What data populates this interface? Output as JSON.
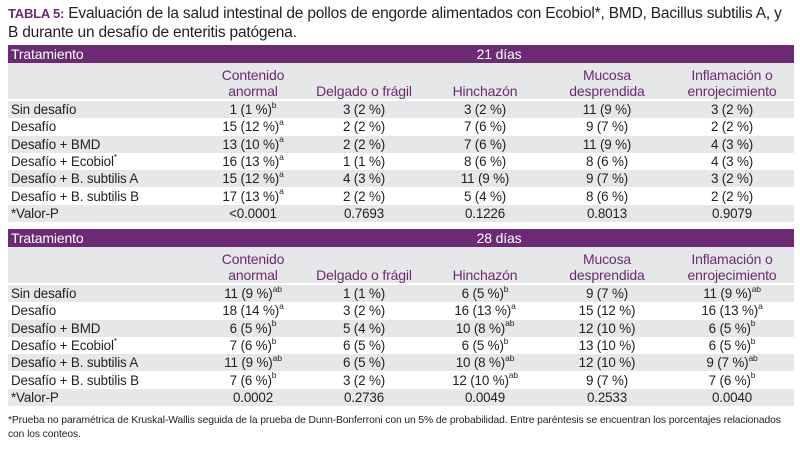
{
  "caption": {
    "label": "TABLA 5:",
    "text": " Evaluación de la salud intestinal de pollos de engorde alimentados con Ecobiol*, BMD, Bacillus subtilis A, y B durante un desafío de enteritis patógena."
  },
  "columns": [
    "Contenido anormal",
    "Delgado o frágil",
    "Hinchazón",
    "Mucosa desprendida",
    "Inflamación o enrojecimiento"
  ],
  "row_header": "Tratamiento",
  "sections": [
    {
      "period": "21 días",
      "rows": [
        {
          "name": "Sin desafío",
          "cells": [
            {
              "v": "1 (1 %)",
              "s": "b"
            },
            {
              "v": "3 (2 %)",
              "s": ""
            },
            {
              "v": "3 (2 %)",
              "s": ""
            },
            {
              "v": "11 (9 %)",
              "s": ""
            },
            {
              "v": "3 (2 %)",
              "s": ""
            }
          ]
        },
        {
          "name": "Desafío",
          "cells": [
            {
              "v": "15 (12 %)",
              "s": "a"
            },
            {
              "v": "2 (2 %)",
              "s": ""
            },
            {
              "v": "7 (6 %)",
              "s": ""
            },
            {
              "v": "9 (7 %)",
              "s": ""
            },
            {
              "v": "2 (2 %)",
              "s": ""
            }
          ]
        },
        {
          "name": "Desafío + BMD",
          "cells": [
            {
              "v": "13 (10 %)",
              "s": "a"
            },
            {
              "v": "2 (2 %)",
              "s": ""
            },
            {
              "v": "7 (6 %)",
              "s": ""
            },
            {
              "v": "11 (9 %)",
              "s": ""
            },
            {
              "v": "4 (3 %)",
              "s": ""
            }
          ]
        },
        {
          "name": "Desafío + Ecobiol",
          "name_sup": "*",
          "cells": [
            {
              "v": "16 (13 %)",
              "s": "a"
            },
            {
              "v": "1 (1 %)",
              "s": ""
            },
            {
              "v": "8 (6 %)",
              "s": ""
            },
            {
              "v": "8 (6 %)",
              "s": ""
            },
            {
              "v": "4 (3 %)",
              "s": ""
            }
          ]
        },
        {
          "name": "Desafío + B. subtilis A",
          "cells": [
            {
              "v": "15 (12 %)",
              "s": "a"
            },
            {
              "v": "4 (3 %)",
              "s": ""
            },
            {
              "v": "11 (9 %)",
              "s": ""
            },
            {
              "v": "9 (7 %)",
              "s": ""
            },
            {
              "v": "3 (2 %)",
              "s": ""
            }
          ]
        },
        {
          "name": "Desafío + B. subtilis B",
          "cells": [
            {
              "v": "17 (13 %)",
              "s": "a"
            },
            {
              "v": "2 (2 %)",
              "s": ""
            },
            {
              "v": "5 (4 %)",
              "s": ""
            },
            {
              "v": "8 (6 %)",
              "s": ""
            },
            {
              "v": "2 (2 %)",
              "s": ""
            }
          ]
        },
        {
          "name": "*Valor-P",
          "cells": [
            {
              "v": "<0.0001",
              "s": ""
            },
            {
              "v": "0.7693",
              "s": ""
            },
            {
              "v": "0.1226",
              "s": ""
            },
            {
              "v": "0.8013",
              "s": ""
            },
            {
              "v": "0.9079",
              "s": ""
            }
          ]
        }
      ]
    },
    {
      "period": "28 días",
      "rows": [
        {
          "name": "Sin desafío",
          "cells": [
            {
              "v": "11 (9 %)",
              "s": "ab"
            },
            {
              "v": "1 (1 %)",
              "s": ""
            },
            {
              "v": "6 (5 %)",
              "s": "b"
            },
            {
              "v": "9 (7 %)",
              "s": ""
            },
            {
              "v": "11 (9 %)",
              "s": "ab"
            }
          ]
        },
        {
          "name": "Desafío",
          "cells": [
            {
              "v": "18 (14 %)",
              "s": "a"
            },
            {
              "v": "3 (2 %)",
              "s": ""
            },
            {
              "v": "16 (13 %)",
              "s": "a"
            },
            {
              "v": "15 (12 %)",
              "s": ""
            },
            {
              "v": "16 (13 %)",
              "s": "a"
            }
          ]
        },
        {
          "name": "Desafío + BMD",
          "cells": [
            {
              "v": "6 (5 %)",
              "s": "b"
            },
            {
              "v": "5 (4 %)",
              "s": ""
            },
            {
              "v": "10 (8 %)",
              "s": "ab"
            },
            {
              "v": "12 (10 %)",
              "s": ""
            },
            {
              "v": "6 (5 %)",
              "s": "b"
            }
          ]
        },
        {
          "name": "Desafío + Ecobiol",
          "name_sup": "*",
          "cells": [
            {
              "v": "7 (6 %)",
              "s": "b"
            },
            {
              "v": "6 (5 %)",
              "s": ""
            },
            {
              "v": "6 (5 %)",
              "s": "b"
            },
            {
              "v": "13 (10 %)",
              "s": ""
            },
            {
              "v": "6 (5 %)",
              "s": "b"
            }
          ]
        },
        {
          "name": "Desafío + B. subtilis A",
          "cells": [
            {
              "v": "11 (9 %)",
              "s": "ab"
            },
            {
              "v": "6 (5 %)",
              "s": ""
            },
            {
              "v": "10 (8 %)",
              "s": "ab"
            },
            {
              "v": "12 (10 %)",
              "s": ""
            },
            {
              "v": "9 (7 %)",
              "s": "ab"
            }
          ]
        },
        {
          "name": "Desafío + B. subtilis B",
          "cells": [
            {
              "v": "7 (6 %)",
              "s": "b"
            },
            {
              "v": "3 (2 %)",
              "s": ""
            },
            {
              "v": "12 (10 %)",
              "s": "ab"
            },
            {
              "v": "9 (7 %)",
              "s": ""
            },
            {
              "v": "7 (6 %)",
              "s": "b"
            }
          ]
        },
        {
          "name": "*Valor-P",
          "cells": [
            {
              "v": "0.0002",
              "s": ""
            },
            {
              "v": "0.2736",
              "s": ""
            },
            {
              "v": "0.0049",
              "s": ""
            },
            {
              "v": "0.2533",
              "s": ""
            },
            {
              "v": "0.0040",
              "s": ""
            }
          ]
        }
      ]
    }
  ],
  "footnote": "*Prueba no paramétrica de Kruskal-Wallis seguida de la prueba de Dunn-Bonferroni con un 5% de probabilidad. Entre paréntesis se encuentran los porcentajes relacionados con los conteos.",
  "colors": {
    "header_band": "#6b2a73",
    "row_shade": "#e6e7e8",
    "caption_label": "#6b2a73"
  }
}
